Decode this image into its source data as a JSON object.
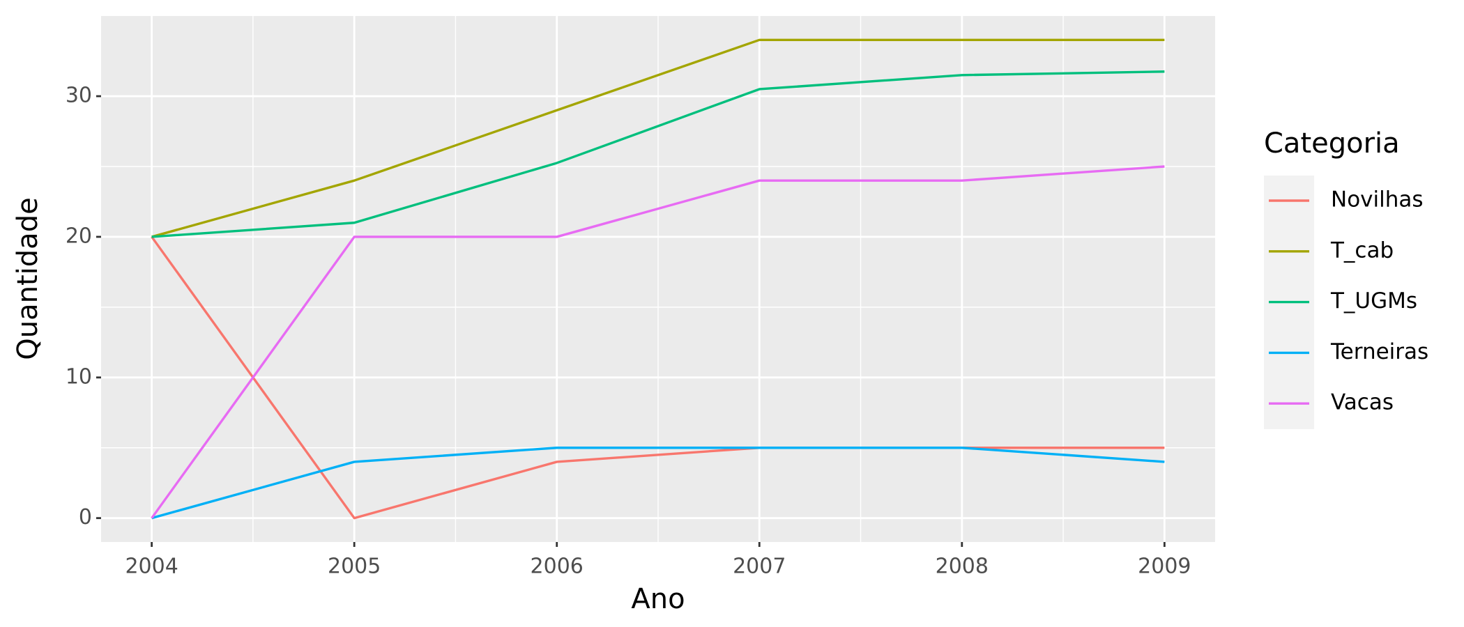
{
  "chart_data": {
    "type": "line",
    "x_label": "Ano",
    "y_label": "Quantidade",
    "legend_title": "Categoria",
    "x": [
      2004,
      2005,
      2006,
      2007,
      2008,
      2009
    ],
    "series": [
      {
        "name": "Novilhas",
        "color": "#F8766D",
        "values": [
          20,
          0,
          4,
          5,
          5,
          5
        ]
      },
      {
        "name": "T_cab",
        "color": "#A3A500",
        "values": [
          20,
          24,
          29,
          34,
          34,
          34
        ]
      },
      {
        "name": "T_UGMs",
        "color": "#00BF7D",
        "values": [
          20,
          21,
          25.25,
          30.5,
          31.5,
          31.75
        ]
      },
      {
        "name": "Terneiras",
        "color": "#00B0F6",
        "values": [
          0,
          4,
          5,
          5,
          5,
          4
        ]
      },
      {
        "name": "Vacas",
        "color": "#E76BF3",
        "values": [
          0,
          20,
          20,
          24,
          24,
          25
        ]
      }
    ],
    "xlim": [
      2003.75,
      2009.25
    ],
    "xticks": [
      2004,
      2005,
      2006,
      2007,
      2008,
      2009
    ],
    "ylim": [
      -1.7,
      35.7
    ],
    "yticks": [
      0,
      10,
      20,
      30
    ],
    "grid": true,
    "legend": "right"
  }
}
